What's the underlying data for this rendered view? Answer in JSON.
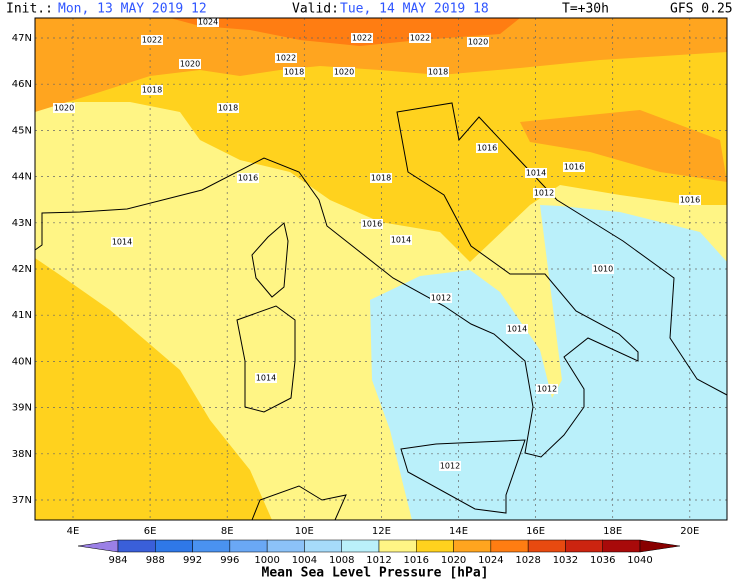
{
  "header": {
    "init_label": "Init.:",
    "init_value": "Mon, 13 MAY 2019  12",
    "valid_label": "Valid:",
    "valid_value": "Tue, 14 MAY 2019  18",
    "lead": "T=+30h",
    "model": "GFS 0.25",
    "label_color": "#000000",
    "value_color": "#2f55ff"
  },
  "map": {
    "lat_labels": [
      "47N",
      "46N",
      "45N",
      "44N",
      "43N",
      "42N",
      "41N",
      "40N",
      "39N",
      "38N",
      "37N"
    ],
    "lon_labels": [
      "4E",
      "6E",
      "8E",
      "10E",
      "12E",
      "14E",
      "16E",
      "18E",
      "20E"
    ],
    "isobar_labels": [
      "1024",
      "1022",
      "1022",
      "1022",
      "1020",
      "1022",
      "1020",
      "1018",
      "1020",
      "1018",
      "1018",
      "1020",
      "1018",
      "1016",
      "1016",
      "1018",
      "1014",
      "1016",
      "1012",
      "1016",
      "1016",
      "1014",
      "1014",
      "1010",
      "1012",
      "1014",
      "1014",
      "1012",
      "1012"
    ]
  },
  "colorbar": {
    "colors": [
      "#9b80e6",
      "#3a5fd9",
      "#2f78e8",
      "#4a92f0",
      "#6aa8f5",
      "#8cc2f8",
      "#a6dbfa",
      "#baf0fa",
      "#fff585",
      "#ffd21e",
      "#ffa51f",
      "#ff7d12",
      "#e84a10",
      "#cc2410",
      "#a80a0a",
      "#880000"
    ],
    "labels": [
      "984",
      "988",
      "992",
      "996",
      "1000",
      "1004",
      "1008",
      "1012",
      "1016",
      "1020",
      "1024",
      "1028",
      "1032",
      "1036",
      "1040"
    ],
    "title": "Mean Sea Level Pressure [hPa]"
  }
}
